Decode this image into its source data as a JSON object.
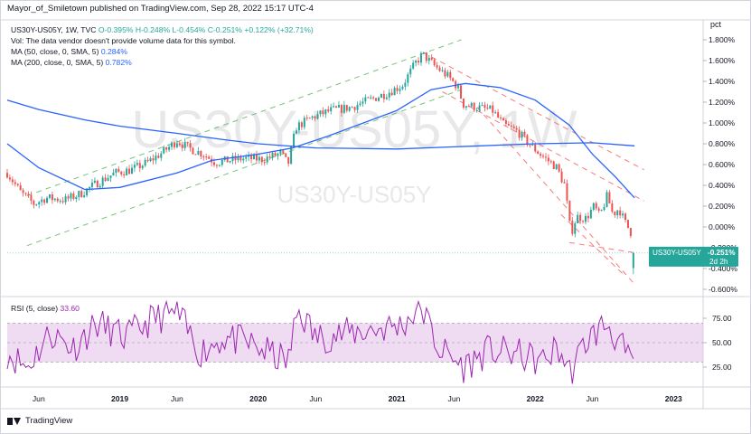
{
  "header": {
    "publisher_line": "Mayor_of_Smiletown published on TradingView.com, Sep 28, 2022 15:17 UTC-4"
  },
  "legend": {
    "symbol": "US30Y-US05Y, 1W, TVC",
    "open": "O-0.395%",
    "high": "H-0.248%",
    "low": "L-0.454%",
    "close": "C-0.251%",
    "change": "+0.122% (+32.71%)",
    "vol_note": "Vol: The data vendor doesn't provide volume data for this symbol.",
    "ma50_label": "MA (50, close, 0, SMA, 5)",
    "ma50_value": "0.284%",
    "ma200_label": "MA (200, close, 0, SMA, 5)",
    "ma200_value": "0.782%",
    "rsi_label": "RSI (5, close)",
    "rsi_value": "33.60"
  },
  "price_axis_unit": "pct",
  "watermark": {
    "large": "US30Y-US05Y, 1W",
    "small": "US30Y-US05Y"
  },
  "last_price_label": {
    "symbol": "US30Y-US05Y",
    "value": "-0.251%",
    "countdown": "2d 2h"
  },
  "footer": {
    "brand": "TradingView"
  },
  "colors": {
    "up": "#26a69a",
    "down": "#ef5350",
    "ma50": "#2962ff",
    "ma200": "#2962ff",
    "rsi": "#9c27b0",
    "rsi_band": "#e1bee7",
    "channel_green": "#4caf50",
    "channel_red": "#ef5350",
    "label_bg": "#26a69a"
  },
  "chart_data": [
    {
      "type": "candlestick",
      "title": "US30Y-US05Y, 1W, TVC",
      "y_unit": "%",
      "ylim": [
        -0.7,
        1.92
      ],
      "xlim": [
        "2018-03-10",
        "2023-03-20"
      ],
      "y_ticks": [
        1.8,
        1.6,
        1.4,
        1.2,
        1.0,
        0.8,
        0.6,
        0.4,
        0.2,
        0.0,
        -0.2,
        -0.4,
        -0.6
      ],
      "y_tick_labels": [
        "1.800%",
        "1.600%",
        "1.400%",
        "1.200%",
        "1.000%",
        "0.800%",
        "0.600%",
        "0.400%",
        "0.200%",
        "0.000%",
        "-0.200%",
        "-0.400%",
        "-0.600%"
      ],
      "x_ticks": [
        "2018-06-01",
        "2019-01-01",
        "2019-06-01",
        "2020-01-01",
        "2020-06-01",
        "2021-01-01",
        "2021-06-01",
        "2022-01-01",
        "2022-06-01",
        "2023-01-01"
      ],
      "x_tick_labels": [
        "Jun",
        "2019",
        "Jun",
        "2020",
        "Jun",
        "2021",
        "Jun",
        "2022",
        "Jun",
        "2023"
      ],
      "close_anchors": [
        [
          "2018-03-10",
          0.52
        ],
        [
          "2018-04-15",
          0.33
        ],
        [
          "2018-05-20",
          0.22
        ],
        [
          "2018-06-20",
          0.28
        ],
        [
          "2018-08-10",
          0.26
        ],
        [
          "2018-09-20",
          0.32
        ],
        [
          "2018-11-01",
          0.42
        ],
        [
          "2018-12-20",
          0.52
        ],
        [
          "2019-02-01",
          0.55
        ],
        [
          "2019-03-15",
          0.62
        ],
        [
          "2019-04-25",
          0.72
        ],
        [
          "2019-06-01",
          0.83
        ],
        [
          "2019-07-01",
          0.76
        ],
        [
          "2019-08-10",
          0.7
        ],
        [
          "2019-09-10",
          0.62
        ],
        [
          "2019-10-15",
          0.64
        ],
        [
          "2019-12-01",
          0.66
        ],
        [
          "2020-01-10",
          0.65
        ],
        [
          "2020-02-10",
          0.68
        ],
        [
          "2020-03-01",
          0.71
        ],
        [
          "2020-03-20",
          0.6
        ],
        [
          "2020-04-10",
          0.96
        ],
        [
          "2020-05-20",
          1.05
        ],
        [
          "2020-07-10",
          1.12
        ],
        [
          "2020-09-01",
          1.15
        ],
        [
          "2020-10-20",
          1.22
        ],
        [
          "2020-12-01",
          1.28
        ],
        [
          "2021-01-15",
          1.36
        ],
        [
          "2021-02-20",
          1.58
        ],
        [
          "2021-03-10",
          1.66
        ],
        [
          "2021-04-10",
          1.55
        ],
        [
          "2021-05-15",
          1.45
        ],
        [
          "2021-06-10",
          1.35
        ],
        [
          "2021-06-25",
          1.18
        ],
        [
          "2021-08-01",
          1.15
        ],
        [
          "2021-09-10",
          1.12
        ],
        [
          "2021-10-10",
          0.98
        ],
        [
          "2021-11-15",
          0.92
        ],
        [
          "2021-12-15",
          0.8
        ],
        [
          "2022-01-20",
          0.68
        ],
        [
          "2022-02-25",
          0.58
        ],
        [
          "2022-03-20",
          0.4
        ],
        [
          "2022-04-05",
          -0.07
        ],
        [
          "2022-04-20",
          0.1
        ],
        [
          "2022-05-15",
          0.08
        ],
        [
          "2022-06-05",
          0.2
        ],
        [
          "2022-06-20",
          0.1
        ],
        [
          "2022-07-10",
          0.3
        ],
        [
          "2022-07-25",
          0.12
        ],
        [
          "2022-08-10",
          0.18
        ],
        [
          "2022-08-25",
          0.05
        ],
        [
          "2022-09-10",
          -0.05
        ],
        [
          "2022-09-22",
          -0.25
        ]
      ],
      "series": [
        {
          "name": "MA (50, close, 0, SMA, 5)",
          "color": "#2962ff",
          "points": [
            [
              "2018-03-10",
              0.8
            ],
            [
              "2018-06-01",
              0.57
            ],
            [
              "2018-10-01",
              0.36
            ],
            [
              "2019-01-01",
              0.38
            ],
            [
              "2019-06-01",
              0.52
            ],
            [
              "2019-09-01",
              0.64
            ],
            [
              "2020-01-01",
              0.7
            ],
            [
              "2020-04-01",
              0.76
            ],
            [
              "2020-07-01",
              0.87
            ],
            [
              "2021-01-01",
              1.12
            ],
            [
              "2021-04-01",
              1.32
            ],
            [
              "2021-07-01",
              1.38
            ],
            [
              "2021-10-01",
              1.34
            ],
            [
              "2022-01-01",
              1.22
            ],
            [
              "2022-04-01",
              0.98
            ],
            [
              "2022-06-01",
              0.7
            ],
            [
              "2022-08-01",
              0.48
            ],
            [
              "2022-09-20",
              0.28
            ]
          ]
        },
        {
          "name": "MA (200, close, 0, SMA, 5)",
          "color": "#2962ff",
          "points": [
            [
              "2018-03-10",
              1.22
            ],
            [
              "2018-06-01",
              1.13
            ],
            [
              "2018-10-01",
              1.03
            ],
            [
              "2019-01-01",
              0.97
            ],
            [
              "2019-06-01",
              0.9
            ],
            [
              "2019-10-01",
              0.84
            ],
            [
              "2020-01-01",
              0.8
            ],
            [
              "2020-06-01",
              0.76
            ],
            [
              "2021-01-01",
              0.75
            ],
            [
              "2021-06-01",
              0.77
            ],
            [
              "2022-01-01",
              0.8
            ],
            [
              "2022-06-01",
              0.81
            ],
            [
              "2022-09-20",
              0.78
            ]
          ]
        }
      ],
      "trendlines": [
        {
          "color": "#4caf50",
          "style": "dashed",
          "points": [
            [
              "2018-05-01",
              0.3
            ],
            [
              "2021-06-20",
              1.8
            ]
          ]
        },
        {
          "color": "#4caf50",
          "style": "dashed",
          "points": [
            [
              "2018-05-01",
              -0.18
            ],
            [
              "2021-06-20",
              1.32
            ]
          ]
        },
        {
          "color": "#ef5350",
          "style": "dashed",
          "points": [
            [
              "2021-03-10",
              1.68
            ],
            [
              "2022-10-15",
              0.55
            ]
          ]
        },
        {
          "color": "#ef5350",
          "style": "dashed",
          "points": [
            [
              "2021-05-01",
              1.3
            ],
            [
              "2022-10-15",
              0.25
            ]
          ]
        },
        {
          "color": "#ef5350",
          "style": "dashed",
          "points": [
            [
              "2021-08-01",
              1.15
            ],
            [
              "2022-09-20",
              -0.55
            ]
          ]
        },
        {
          "color": "#ef5350",
          "style": "dashed",
          "points": [
            [
              "2022-04-01",
              -0.15
            ],
            [
              "2022-09-25",
              -0.25
            ]
          ]
        },
        {
          "color": "#ef5350",
          "style": "dashed",
          "points": [
            [
              "2022-03-10",
              0.12
            ],
            [
              "2022-08-20",
              -0.45
            ]
          ]
        }
      ]
    },
    {
      "type": "line",
      "title": "RSI (5, close)",
      "ylim": [
        0,
        100
      ],
      "y_ticks": [
        75,
        50,
        25
      ],
      "y_tick_labels": [
        "75.00",
        "50.00",
        "25.00"
      ],
      "band": [
        30,
        70
      ],
      "series": [
        {
          "name": "RSI (5, close)",
          "color": "#9c27b0",
          "anchors": [
            [
              "2018-03-10",
              40
            ],
            [
              "2018-05-01",
              25
            ],
            [
              "2018-07-01",
              60
            ],
            [
              "2018-09-01",
              45
            ],
            [
              "2018-11-01",
              70
            ],
            [
              "2019-01-15",
              55
            ],
            [
              "2019-04-01",
              75
            ],
            [
              "2019-06-01",
              80
            ],
            [
              "2019-08-01",
              40
            ],
            [
              "2019-10-01",
              55
            ],
            [
              "2019-12-01",
              50
            ],
            [
              "2020-03-20",
              30
            ],
            [
              "2020-04-15",
              85
            ],
            [
              "2020-06-01",
              55
            ],
            [
              "2020-09-01",
              60
            ],
            [
              "2021-01-15",
              68
            ],
            [
              "2021-03-05",
              88
            ],
            [
              "2021-04-20",
              45
            ],
            [
              "2021-06-25",
              25
            ],
            [
              "2021-09-01",
              42
            ],
            [
              "2021-11-15",
              38
            ],
            [
              "2022-01-20",
              30
            ],
            [
              "2022-03-01",
              45
            ],
            [
              "2022-04-05",
              18
            ],
            [
              "2022-05-15",
              52
            ],
            [
              "2022-07-10",
              70
            ],
            [
              "2022-08-25",
              40
            ],
            [
              "2022-09-15",
              22
            ],
            [
              "2022-09-22",
              33.6
            ]
          ]
        }
      ]
    }
  ]
}
